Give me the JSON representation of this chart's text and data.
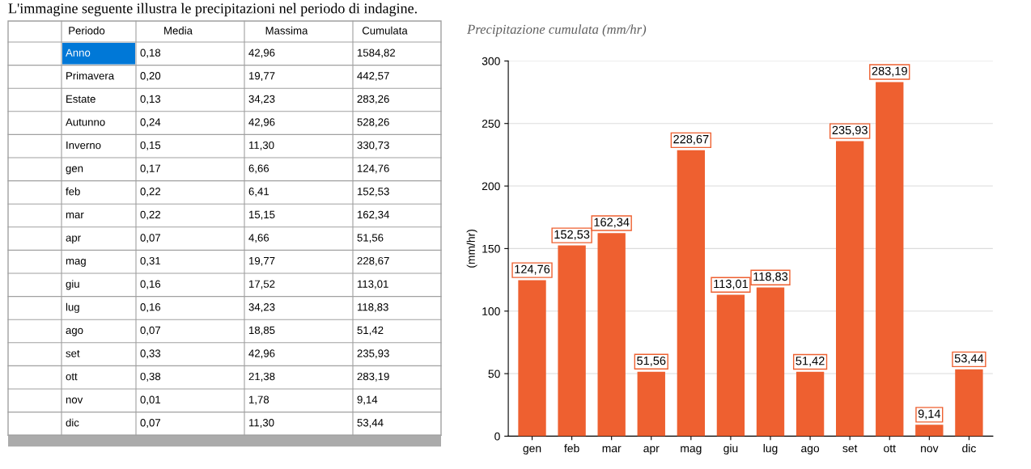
{
  "chart_data": [
    {
      "type": "other",
      "title": "L'immagine seguente illustra le precipitazioni nel periodo di indagine.",
      "annotations": [
        "Periodo",
        "Media",
        "Massima",
        "Cumulata",
        "Anno",
        "0,18",
        "42,96",
        "1584,82",
        "Primavera",
        "0,20",
        "19,77",
        "442,57",
        "Estate",
        "0,13",
        "34,23",
        "283,26",
        "Autunno",
        "0,24",
        "42,96",
        "528,26",
        "Inverno",
        "0,15",
        "11,30",
        "330,73",
        "gen",
        "0,17",
        "6,66",
        "124,76",
        "feb",
        "0,22",
        "6,41",
        "152,53",
        "mar",
        "0,22",
        "15,15",
        "162,34",
        "apr",
        "0,07",
        "4,66",
        "51,56",
        "mag",
        "0,31",
        "19,77",
        "228,67",
        "giu",
        "0,16",
        "17,52",
        "113,01",
        "lug",
        "0,16",
        "34,23",
        "118,83",
        "ago",
        "0,07",
        "18,85",
        "51,42",
        "set",
        "0,33",
        "42,96",
        "235,93",
        "ott",
        "0,38",
        "21,38",
        "283,19",
        "nov",
        "0,01",
        "1,78",
        "9,14",
        "dic",
        "0,07",
        "11,30",
        "53,44"
      ]
    },
    {
      "type": "bar",
      "title": "Precipitazione cumulata (mm/hr)",
      "ylabel": "(mm/hr)",
      "categories": [
        "gen",
        "feb",
        "mar",
        "apr",
        "mag",
        "giu",
        "lug",
        "ago",
        "set",
        "ott",
        "nov",
        "dic"
      ],
      "values": [
        124.76,
        152.53,
        162.34,
        51.56,
        228.67,
        113.01,
        118.83,
        51.42,
        235.93,
        283.19,
        9.14,
        53.44
      ],
      "value_labels": [
        "124,76",
        "152,53",
        "162,34",
        "51,56",
        "228,67",
        "113,01",
        "118,83",
        "51,42",
        "235,93",
        "283,19",
        "9,14",
        "53,44"
      ],
      "color": "#ee6030",
      "ylim": [
        0,
        300
      ],
      "yticks": [
        0,
        50,
        100,
        150,
        200,
        250,
        300
      ],
      "grid": "y"
    }
  ]
}
